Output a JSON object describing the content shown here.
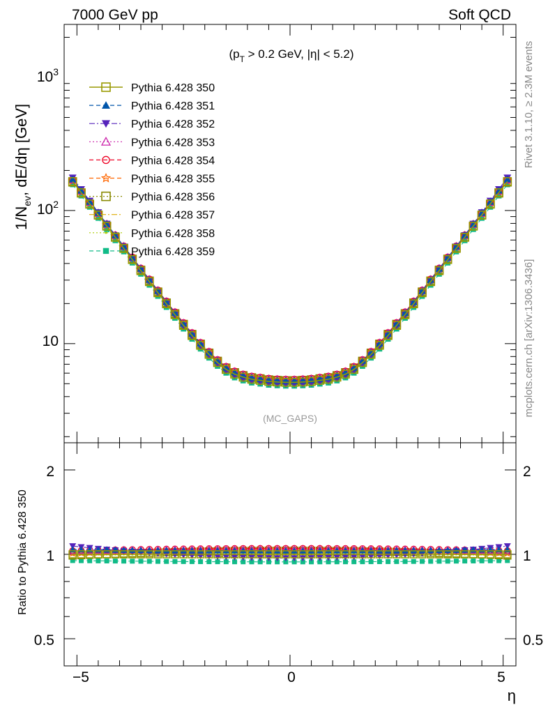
{
  "header": {
    "left": "7000 GeV pp",
    "right": "Soft QCD"
  },
  "side": {
    "rivet": "Rivet 3.1.10, ≥ 2.3M events",
    "mcplots": "mcplots.cern.ch [arXiv:1306.3436]"
  },
  "chart_data": [
    {
      "type": "line",
      "panel": "main",
      "title": "(p_T > 0.2 GeV, |η| < 5.2)",
      "watermark": "(MC_GAPS)",
      "ylabel": "1/N_ev, dE/dη [GeV]",
      "xlabel": "",
      "yscale": "log",
      "xlim": [
        -5.3,
        5.3
      ],
      "ylim": [
        1.8,
        2500
      ],
      "y_ticks": [
        10,
        100,
        1000
      ],
      "y_tick_labels": [
        "10",
        "10^2",
        "10^3"
      ],
      "x_ticks": [
        -5,
        0,
        5
      ],
      "x_tick_labels": [
        "",
        "",
        ""
      ],
      "legend_position": "top-left",
      "shape_function": "y = reference * (cosh-like symmetric growth); reference values below",
      "x": [
        -5.1,
        -4.9,
        -4.7,
        -4.5,
        -4.3,
        -4.1,
        -3.9,
        -3.7,
        -3.5,
        -3.3,
        -3.1,
        -2.9,
        -2.7,
        -2.5,
        -2.3,
        -2.1,
        -1.9,
        -1.7,
        -1.5,
        -1.3,
        -1.1,
        -0.9,
        -0.7,
        -0.5,
        -0.3,
        -0.1,
        0.1,
        0.3,
        0.5,
        0.7,
        0.9,
        1.1,
        1.3,
        1.5,
        1.7,
        1.9,
        2.1,
        2.3,
        2.5,
        2.7,
        2.9,
        3.1,
        3.3,
        3.5,
        3.7,
        3.9,
        4.1,
        4.3,
        4.5,
        4.7,
        4.9,
        5.1
      ],
      "reference_values": [
        165,
        136,
        112,
        92.5,
        76.3,
        62.9,
        51.9,
        42.8,
        35.3,
        29.2,
        24.1,
        19.9,
        16.5,
        13.7,
        11.5,
        9.7,
        8.3,
        7.2,
        6.4,
        5.9,
        5.6,
        5.4,
        5.3,
        5.2,
        5.15,
        5.12,
        5.12,
        5.15,
        5.2,
        5.3,
        5.4,
        5.6,
        5.9,
        6.4,
        7.2,
        8.3,
        9.7,
        11.5,
        13.7,
        16.5,
        19.9,
        24.1,
        29.2,
        35.3,
        42.8,
        51.9,
        62.9,
        76.3,
        92.5,
        112,
        136,
        165
      ],
      "series": [
        {
          "name": "Pythia 6.428 350",
          "color": "#999900",
          "marker": "open-square",
          "dash": "solid",
          "ratio": [
            1.0,
            1.0
          ]
        },
        {
          "name": "Pythia 6.428 351",
          "color": "#0055aa",
          "marker": "filled-triangle-up",
          "dash": "dashed",
          "ratio": [
            1.04,
            1.03
          ]
        },
        {
          "name": "Pythia 6.428 352",
          "color": "#5522bb",
          "marker": "filled-triangle-down",
          "dash": "dashdot",
          "ratio": [
            1.07,
            0.97
          ]
        },
        {
          "name": "Pythia 6.428 353",
          "color": "#cc22aa",
          "marker": "open-triangle-up",
          "dash": "dotted",
          "ratio": [
            1.03,
            1.04
          ]
        },
        {
          "name": "Pythia 6.428 354",
          "color": "#ee0022",
          "marker": "open-circle",
          "dash": "dashed",
          "ratio": [
            1.03,
            1.05
          ]
        },
        {
          "name": "Pythia 6.428 355",
          "color": "#ff6600",
          "marker": "open-star",
          "dash": "dashed",
          "ratio": [
            1.01,
            1.04
          ]
        },
        {
          "name": "Pythia 6.428 356",
          "color": "#888800",
          "marker": "open-square",
          "dash": "dotted",
          "ratio": [
            0.99,
            1.03
          ]
        },
        {
          "name": "Pythia 6.428 357",
          "color": "#ddaa00",
          "marker": "none",
          "dash": "dashdot",
          "ratio": [
            1.0,
            1.0
          ]
        },
        {
          "name": "Pythia 6.428 358",
          "color": "#aacc00",
          "marker": "small-dot",
          "dash": "dotted",
          "ratio": [
            1.0,
            1.0
          ]
        },
        {
          "name": "Pythia 6.428 359",
          "color": "#11bb88",
          "marker": "filled-square",
          "dash": "dashed",
          "ratio": [
            0.95,
            0.94
          ]
        }
      ]
    },
    {
      "type": "line",
      "panel": "ratio",
      "ylabel": "Ratio to Pythia 6.428 350",
      "xlabel": "η",
      "yscale": "log",
      "xlim": [
        -5.3,
        5.3
      ],
      "ylim": [
        0.4,
        2.5
      ],
      "y_ticks": [
        0.5,
        1,
        2
      ],
      "y_tick_labels": [
        "0.5",
        "1",
        "2"
      ],
      "x_ticks": [
        -5,
        0,
        5
      ],
      "x_tick_labels": [
        "−5",
        "0",
        "5"
      ],
      "note": "ratio per series: [value at |eta| edges, value at center]"
    }
  ]
}
